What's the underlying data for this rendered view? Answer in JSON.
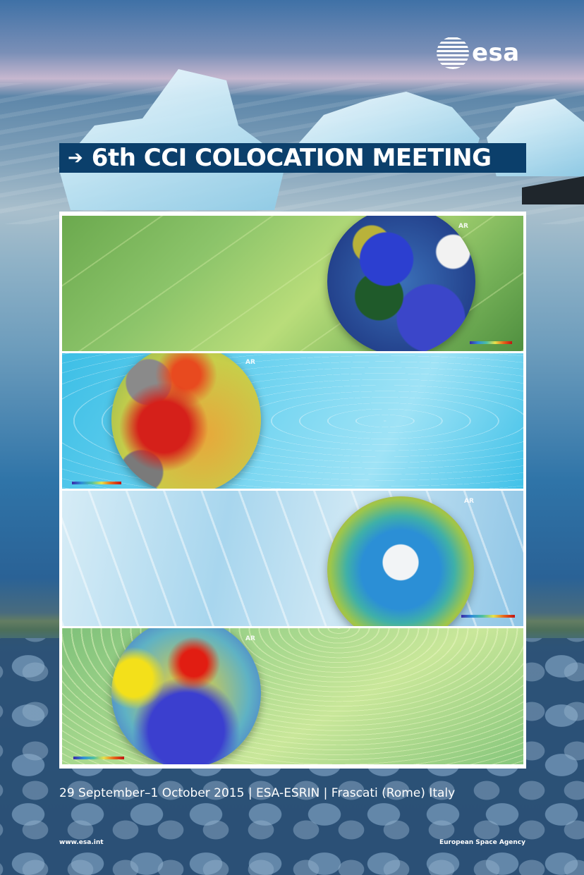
{
  "header": {
    "logo_text": "esa",
    "logo_icon": "esa-logo-icon"
  },
  "title": {
    "arrow": "➔",
    "text": "6th CCI COLOCATION MEETING"
  },
  "panels": [
    {
      "name": "leaf-panel",
      "ar_label": "AR"
    },
    {
      "name": "water-panel",
      "ar_label": "AR"
    },
    {
      "name": "ice-panel",
      "ar_label": "AR"
    },
    {
      "name": "fields-panel",
      "ar_label": "AR"
    }
  ],
  "footer": {
    "event_info": "29 September–1 October 2015 | ESA-ESRIN | Frascati (Rome) Italy",
    "url": "www.esa.int",
    "agency": "European Space Agency"
  },
  "colors": {
    "title_bar": "#0b3f6b",
    "text": "#ffffff"
  }
}
